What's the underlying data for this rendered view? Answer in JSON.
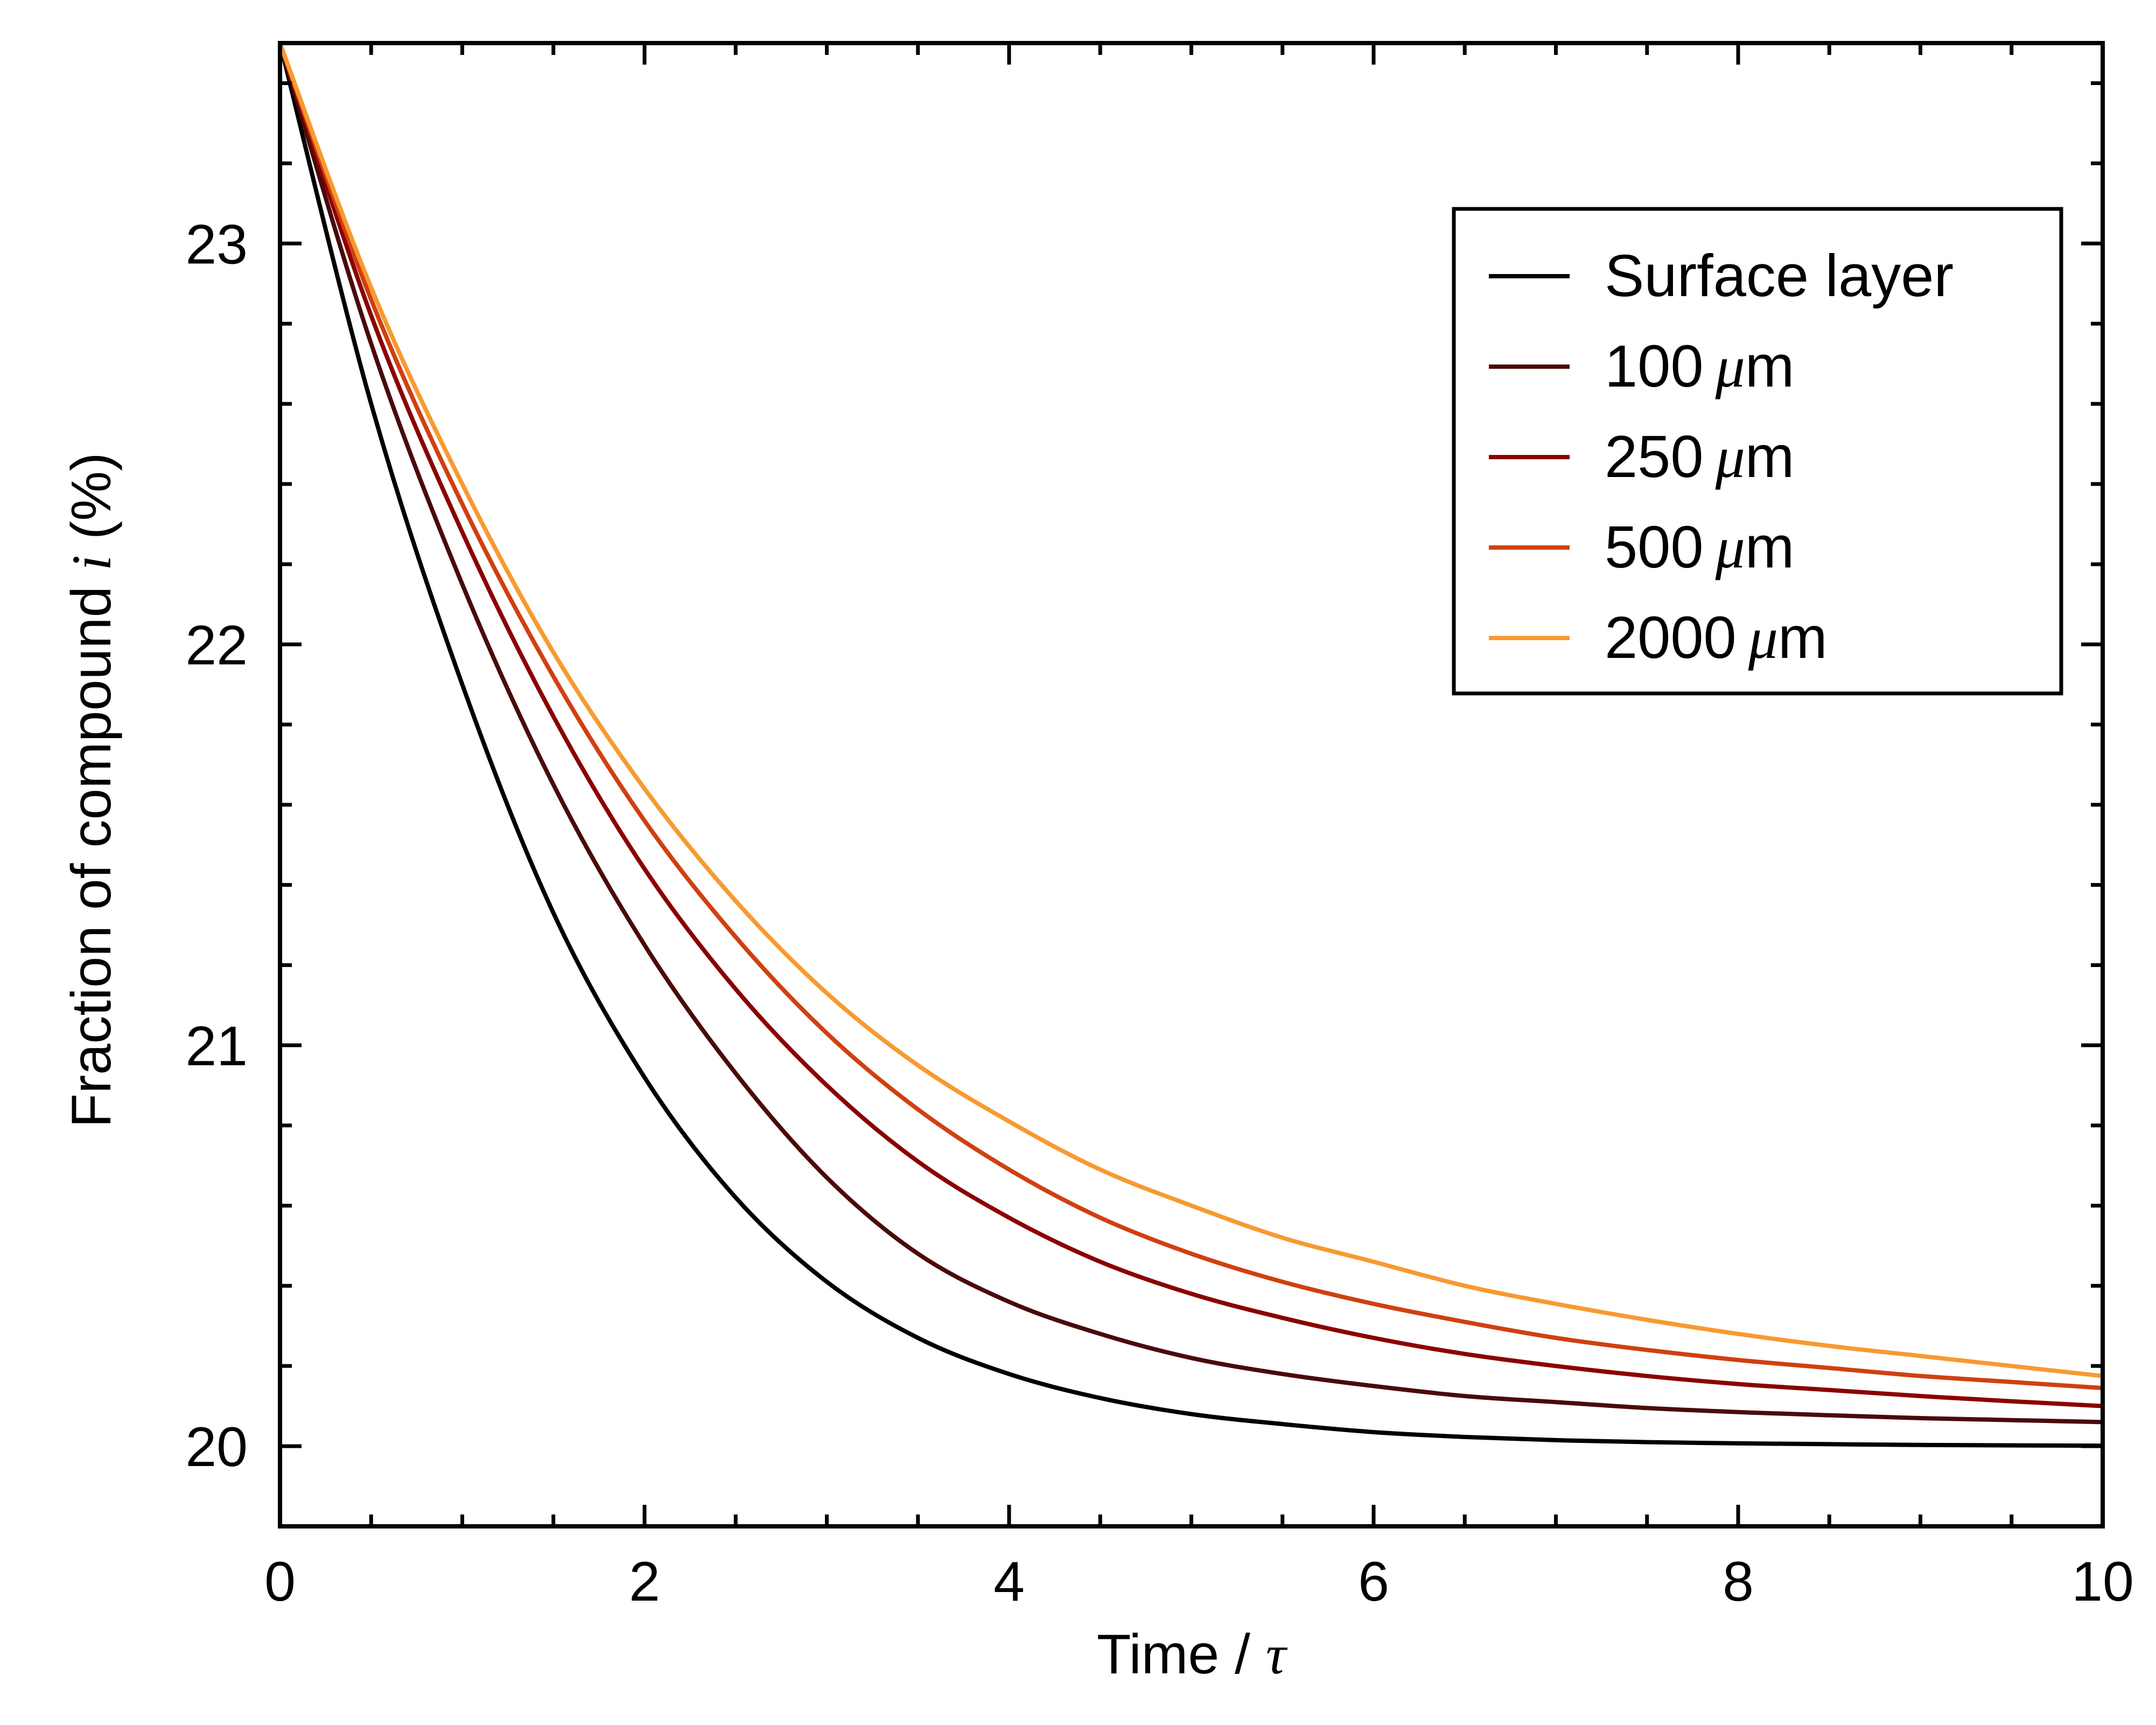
{
  "chart_data": {
    "type": "line",
    "xlabel": "Time / τ",
    "xlabel_parts": {
      "text": "Time / ",
      "symbol": "τ"
    },
    "ylabel": "Fraction of compound i (%)",
    "ylabel_parts": {
      "before": "Fraction of compound ",
      "symbol": "i",
      "after": " (%)"
    },
    "xlim": [
      0,
      10
    ],
    "ylim": [
      19.8,
      23.5
    ],
    "x_ticks": [
      0,
      2,
      4,
      6,
      8,
      10
    ],
    "x_tick_labels": [
      "0",
      "2",
      "4",
      "6",
      "8",
      "10"
    ],
    "x_minor_step": 0.5,
    "y_ticks": [
      20,
      21,
      22,
      23
    ],
    "y_tick_labels": [
      "20",
      "21",
      "22",
      "23"
    ],
    "y_minor_step": 0.2,
    "grid": false,
    "legend_position": "top-right",
    "x": [
      0,
      0.5,
      1,
      1.5,
      2,
      2.5,
      3,
      3.5,
      4,
      4.5,
      5,
      5.5,
      6,
      6.5,
      7,
      7.5,
      8,
      8.5,
      9,
      9.5,
      10
    ],
    "series": [
      {
        "name": "Surface layer",
        "label_text": "Surface layer",
        "unit": "",
        "color": "#000000",
        "values": [
          23.5,
          22.6,
          21.9,
          21.33,
          20.92,
          20.62,
          20.41,
          20.27,
          20.18,
          20.12,
          20.08,
          20.055,
          20.035,
          20.023,
          20.015,
          20.01,
          20.007,
          20.005,
          20.003,
          20.002,
          20.001
        ]
      },
      {
        "name": "100 μm",
        "label_text": "100",
        "unit": "μm",
        "color": "#4a0a0a",
        "values": [
          23.5,
          22.75,
          22.15,
          21.65,
          21.25,
          20.93,
          20.67,
          20.48,
          20.36,
          20.28,
          20.22,
          20.18,
          20.15,
          20.125,
          20.11,
          20.095,
          20.085,
          20.077,
          20.07,
          20.065,
          20.06
        ]
      },
      {
        "name": "250 μm",
        "label_text": "250",
        "unit": "μm",
        "color": "#8b0000",
        "values": [
          23.5,
          22.82,
          22.28,
          21.82,
          21.44,
          21.14,
          20.9,
          20.71,
          20.57,
          20.46,
          20.38,
          20.32,
          20.27,
          20.23,
          20.2,
          20.175,
          20.155,
          20.14,
          20.125,
          20.112,
          20.1
        ]
      },
      {
        "name": "500 μm",
        "label_text": "500",
        "unit": "μm",
        "color": "#d04010",
        "values": [
          23.5,
          22.86,
          22.35,
          21.92,
          21.56,
          21.27,
          21.03,
          20.84,
          20.69,
          20.57,
          20.48,
          20.41,
          20.355,
          20.31,
          20.27,
          20.24,
          20.215,
          20.195,
          20.175,
          20.16,
          20.145
        ]
      },
      {
        "name": "2000 μm",
        "label_text": "2000",
        "unit": "μm",
        "color": "#f79a30",
        "values": [
          23.5,
          22.89,
          22.4,
          21.98,
          21.64,
          21.36,
          21.13,
          20.95,
          20.81,
          20.69,
          20.6,
          20.52,
          20.46,
          20.4,
          20.355,
          20.315,
          20.28,
          20.25,
          20.225,
          20.2,
          20.175
        ]
      }
    ]
  }
}
